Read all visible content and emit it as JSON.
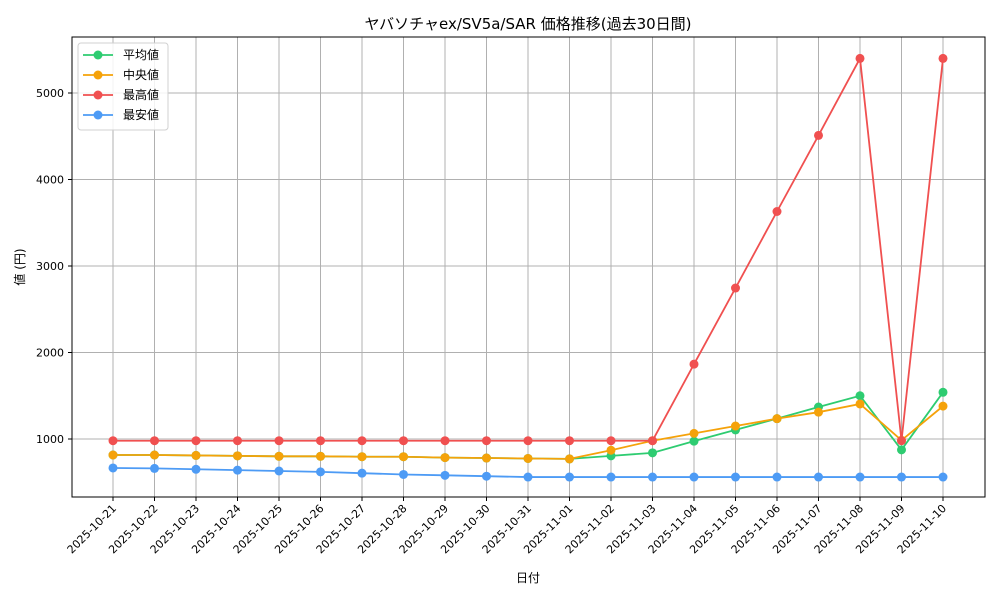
{
  "chart_data": {
    "type": "line",
    "title": "ヤバソチャex/SV5a/SAR 価格推移(過去30日間)",
    "xlabel": "日付",
    "ylabel": "値 (円)",
    "ylim": [
      300,
      5620
    ],
    "yticks": [
      1000,
      2000,
      3000,
      4000,
      5000
    ],
    "grid": true,
    "legend_position": "upper left",
    "categories": [
      "2025-10-21",
      "2025-10-22",
      "2025-10-23",
      "2025-10-24",
      "2025-10-25",
      "2025-10-26",
      "2025-10-27",
      "2025-10-28",
      "2025-10-29",
      "2025-10-30",
      "2025-10-31",
      "2025-11-01",
      "2025-11-02",
      "2025-11-03",
      "2025-11-04",
      "2025-11-05",
      "2025-11-06",
      "2025-11-07",
      "2025-11-08",
      "2025-11-09",
      "2025-11-10"
    ],
    "series": [
      {
        "name": "平均値",
        "color": "#2ecc71",
        "values": [
          815,
          815,
          810,
          805,
          800,
          800,
          795,
          795,
          785,
          780,
          775,
          770,
          805,
          840,
          975,
          1105,
          1235,
          1370,
          1500,
          875,
          1540
        ]
      },
      {
        "name": "中央値",
        "color": "#f5a20a",
        "values": [
          815,
          815,
          810,
          805,
          800,
          800,
          795,
          795,
          785,
          780,
          775,
          770,
          870,
          980,
          1065,
          1150,
          1235,
          1310,
          1405,
          985,
          1380
        ]
      },
      {
        "name": "最高値",
        "color": "#f05050",
        "values": [
          980,
          980,
          980,
          980,
          980,
          980,
          980,
          980,
          980,
          980,
          980,
          980,
          980,
          980,
          1865,
          2745,
          3630,
          4510,
          5400,
          980,
          5400
        ]
      },
      {
        "name": "最安値",
        "color": "#4d9bf5",
        "values": [
          665,
          660,
          650,
          640,
          630,
          620,
          605,
          590,
          580,
          570,
          560,
          560,
          560,
          560,
          560,
          560,
          560,
          560,
          560,
          560,
          560
        ]
      }
    ]
  }
}
